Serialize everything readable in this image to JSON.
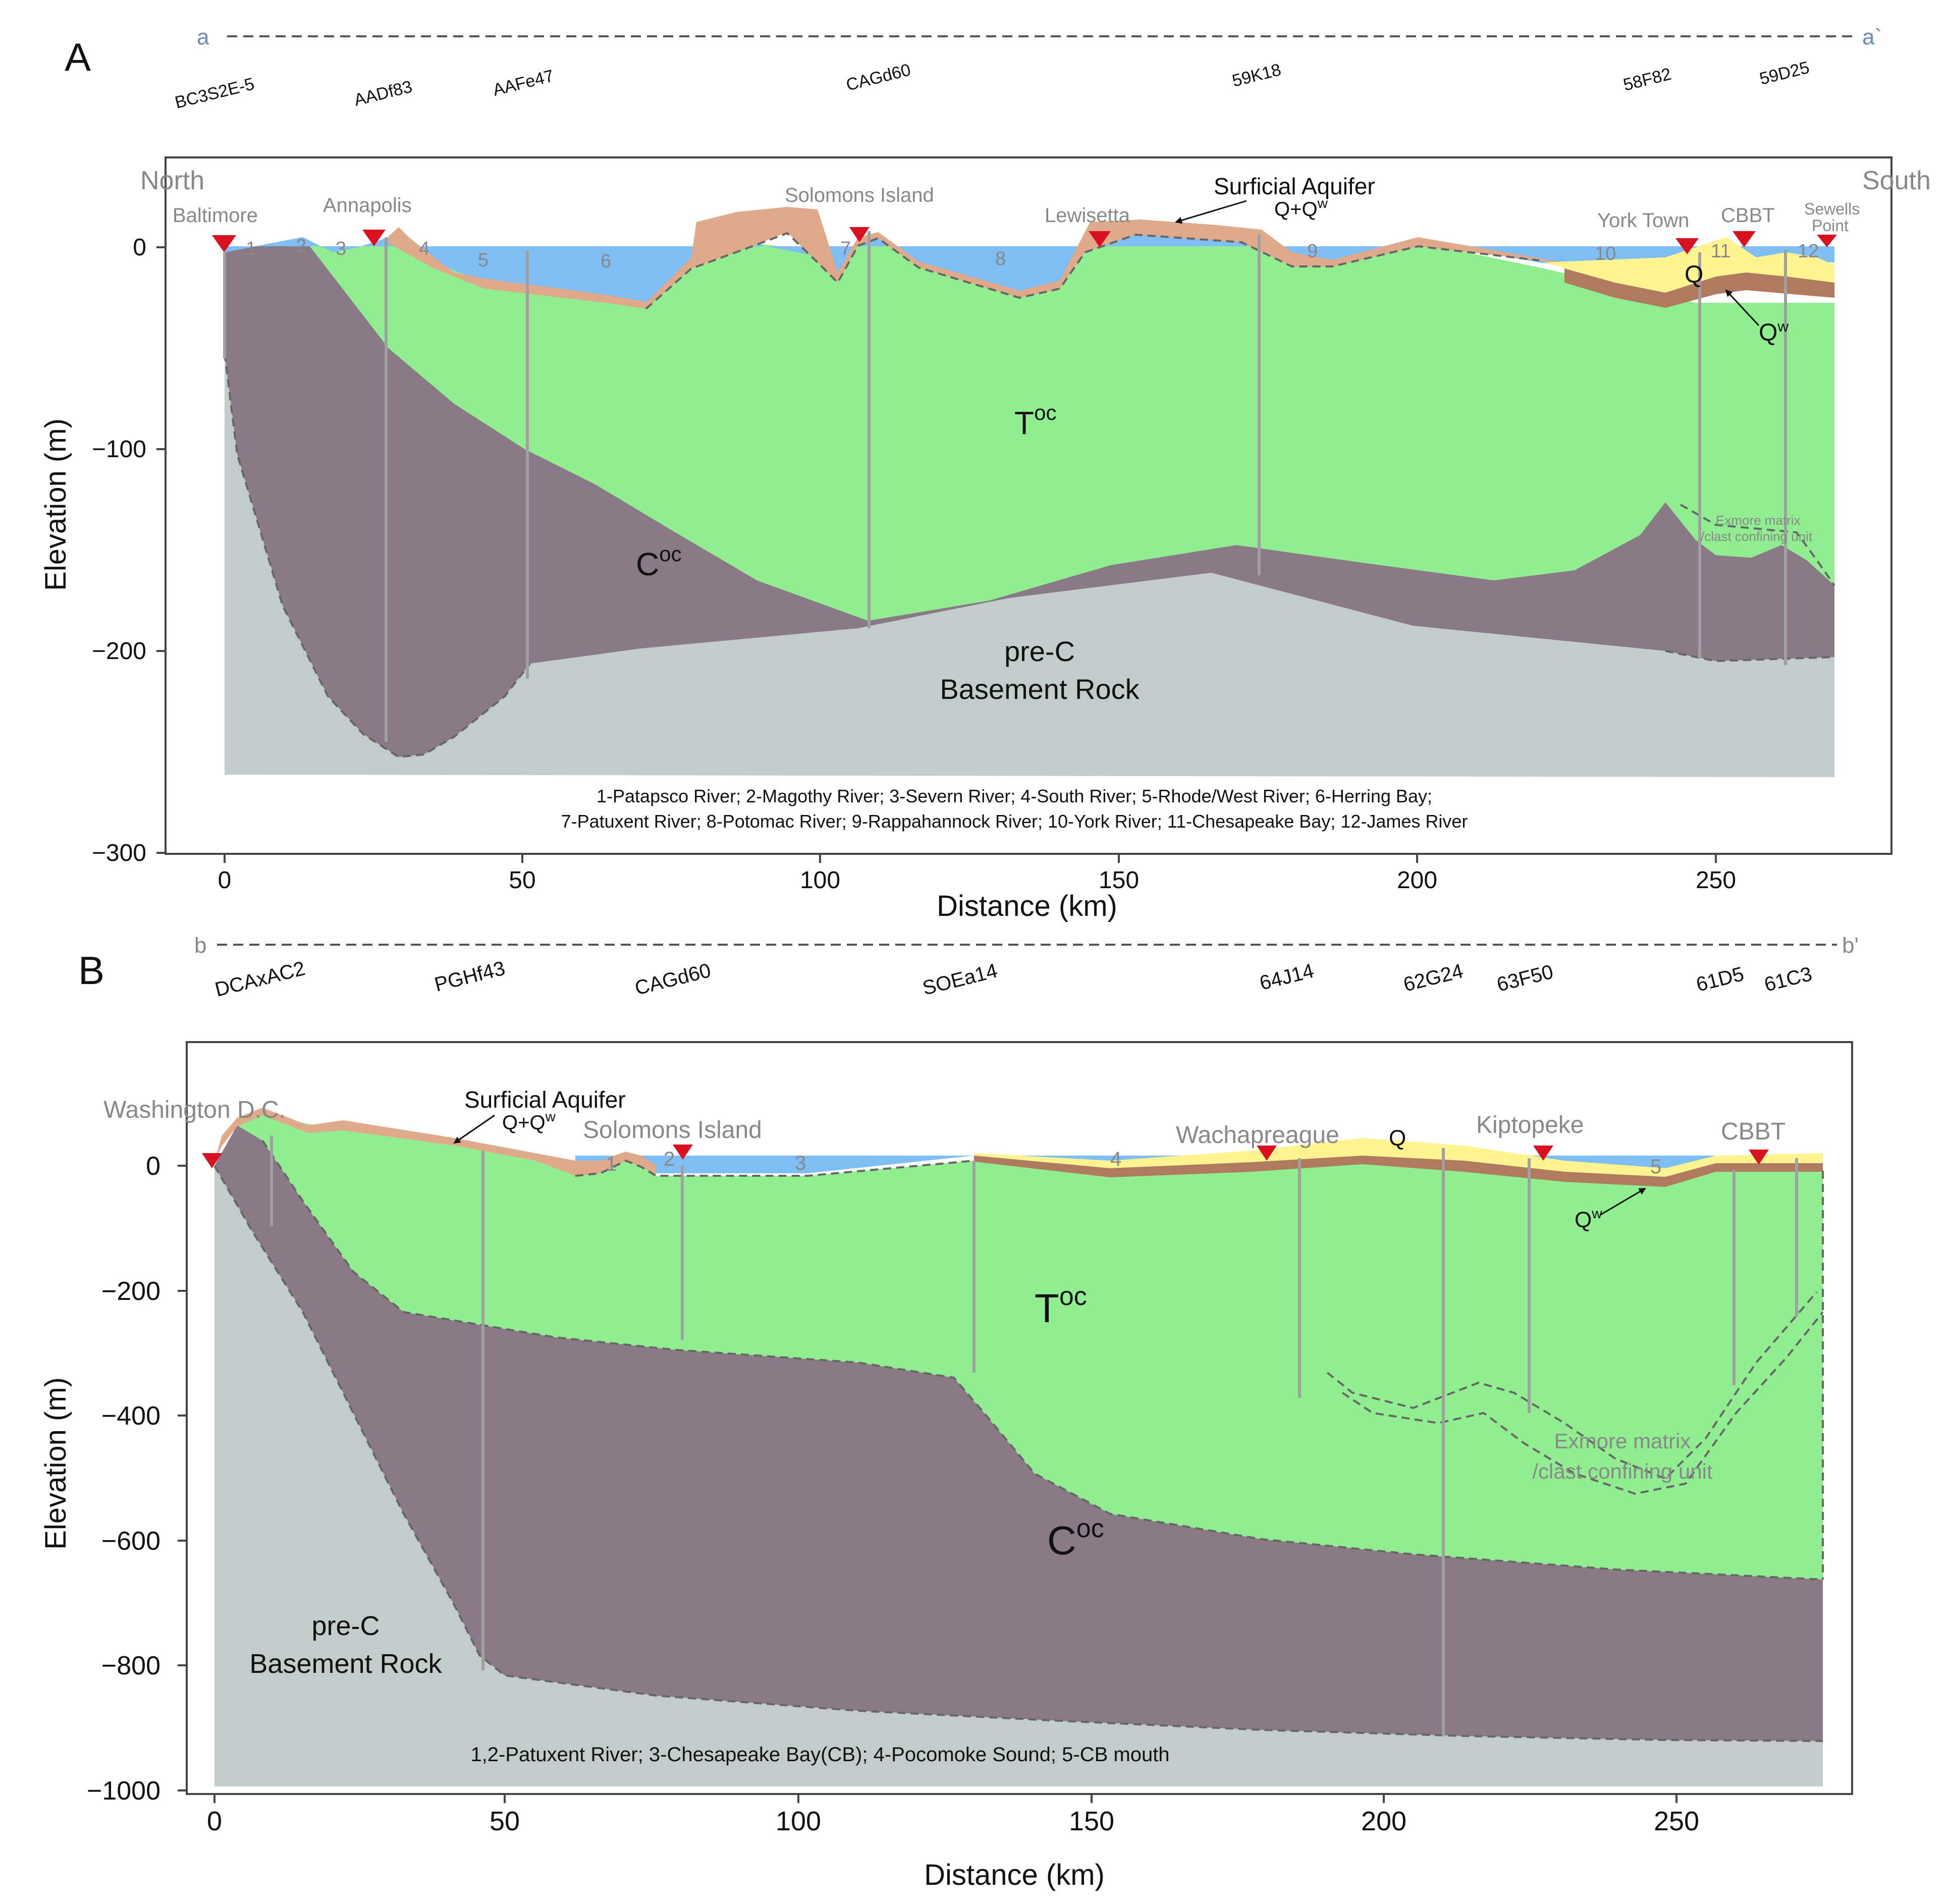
{
  "colors": {
    "water": "#7FBDF5",
    "surficial": "#E0A98A",
    "toc": "#90EE90",
    "coc": "#8A7A88",
    "basement": "#C2CCCB",
    "q": "#FFF48F",
    "qw": "#B07A5E",
    "well": "#A0A0A0",
    "marker": "#D91020",
    "gray_text": "#888888"
  },
  "panelA": {
    "letter": "A",
    "line_start": "a",
    "line_end": "a`",
    "wells": [
      "BC3S2E-5",
      "AADf83",
      "AAFe47",
      "CAGd60",
      "59K18",
      "58F82",
      "59D25"
    ],
    "north_label": "North",
    "south_label": "South",
    "places": {
      "baltimore": "Baltimore",
      "annapolis": "Annapolis",
      "solomons": "Solomons Island",
      "lewisetta": "Lewisetta",
      "yorktown": "York Town",
      "cbbt": "CBBT",
      "sewells_1": "Sewells",
      "sewells_2": "Point"
    },
    "rivers": [
      "1",
      "2",
      "3",
      "4",
      "5",
      "6",
      "7",
      "8",
      "9",
      "10",
      "11",
      "12"
    ],
    "surficial_label": "Surficial Aquifer",
    "qqw_label": "Q+Q",
    "qqw_sup": "w",
    "q_label": "Q",
    "qw_label": "Q",
    "qw_sup": "w",
    "toc_label": "T",
    "toc_sup": "oc",
    "coc_label": "C",
    "coc_sup": "oc",
    "basement_1": "pre-C",
    "basement_2": "Basement Rock",
    "exmore_1": "Exmore matrix",
    "exmore_2": "/clast confining unit",
    "legend_1": "1-Patapsco River; 2-Magothy River; 3-Severn River; 4-South River; 5-Rhode/West River; 6-Herring Bay;",
    "legend_2": "7-Patuxent River; 8-Potomac River; 9-Rappahannock River; 10-York River; 11-Chesapeake Bay; 12-James River",
    "xlabel": "Distance (km)",
    "ylabel": "Elevation (m)",
    "xticks": [
      "0",
      "50",
      "100",
      "150",
      "200",
      "250"
    ],
    "yticks": [
      "0",
      "−100",
      "−200",
      "−300"
    ]
  },
  "panelB": {
    "letter": "B",
    "line_start": "b",
    "line_end": "b'",
    "wells": [
      "DCAxAC2",
      "PGHf43",
      "CAGd60",
      "SOEa14",
      "64J14",
      "62G24",
      "63F50",
      "61D5",
      "61C3"
    ],
    "places": {
      "washington": "Washington D.C.",
      "solomons": "Solomons Island",
      "wachapreague": "Wachapreague",
      "kiptopeke": "Kiptopeke",
      "cbbt": "CBBT"
    },
    "rivers": [
      "1",
      "2",
      "3",
      "4",
      "5"
    ],
    "surficial_label": "Surficial Aquifer",
    "qqw_label": "Q+Q",
    "qqw_sup": "w",
    "q_label": "Q",
    "qw_label": "Q",
    "qw_sup": "w",
    "toc_label": "T",
    "toc_sup": "oc",
    "coc_label": "C",
    "coc_sup": "oc",
    "basement_1": "pre-C",
    "basement_2": "Basement Rock",
    "exmore_1": "Exmore matrix",
    "exmore_2": "/clast confining unit",
    "legend_1": "1,2-Patuxent River; 3-Chesapeake Bay(CB); 4-Pocomoke Sound; 5-CB mouth",
    "xlabel": "Distance (km)",
    "ylabel": "Elevation (m)",
    "xticks": [
      "0",
      "50",
      "100",
      "150",
      "200",
      "250"
    ],
    "yticks": [
      "0",
      "−200",
      "−400",
      "−600",
      "−800",
      "−1000"
    ]
  }
}
